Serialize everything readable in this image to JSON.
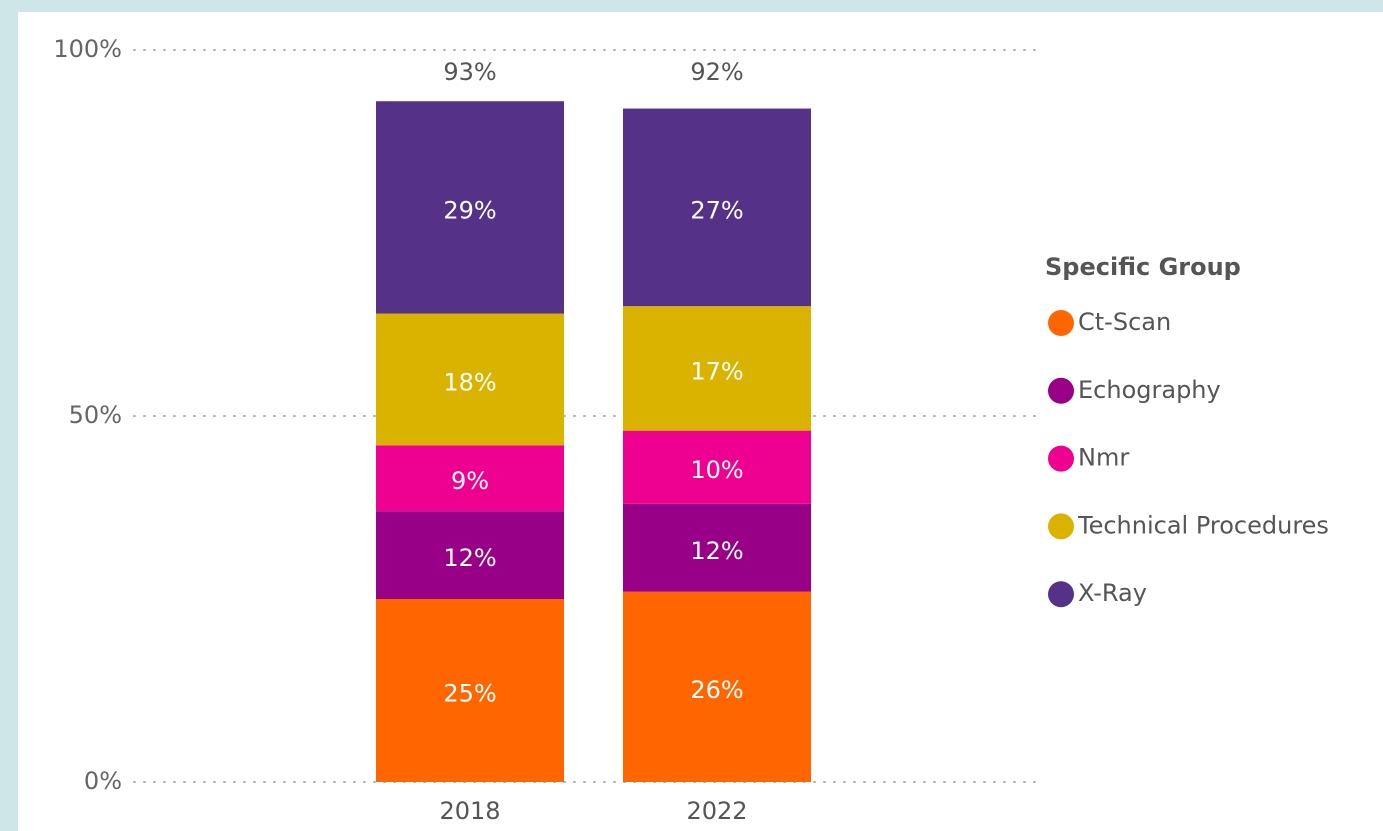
{
  "chart_data": {
    "type": "stacked_bar",
    "categories": [
      "2018",
      "2022"
    ],
    "series": [
      {
        "name": "Ct-Scan",
        "color": "#ff6600",
        "values": [
          25,
          26
        ],
        "value_labels": [
          "25%",
          "26%"
        ]
      },
      {
        "name": "Echography",
        "color": "#990088",
        "values": [
          12,
          12
        ],
        "value_labels": [
          "12%",
          "12%"
        ]
      },
      {
        "name": "Nmr",
        "color": "#ee0090",
        "values": [
          9,
          10
        ],
        "value_labels": [
          "9%",
          "10%"
        ]
      },
      {
        "name": "Technical Procedures",
        "color": "#d9b300",
        "values": [
          18,
          17
        ],
        "value_labels": [
          "18%",
          "17%"
        ]
      },
      {
        "name": "X-Ray",
        "color": "#553287",
        "values": [
          29,
          27
        ],
        "value_labels": [
          "29%",
          "27%"
        ]
      }
    ],
    "totals": [
      93,
      92
    ],
    "total_labels": [
      "93%",
      "92%"
    ],
    "ylim": [
      0,
      100
    ],
    "yticks": [
      {
        "value": 0,
        "label": "0%"
      },
      {
        "value": 50,
        "label": "50%"
      },
      {
        "value": 100,
        "label": "100%"
      }
    ],
    "grid": true,
    "legend_title": "Specific Group",
    "legend": "right"
  }
}
